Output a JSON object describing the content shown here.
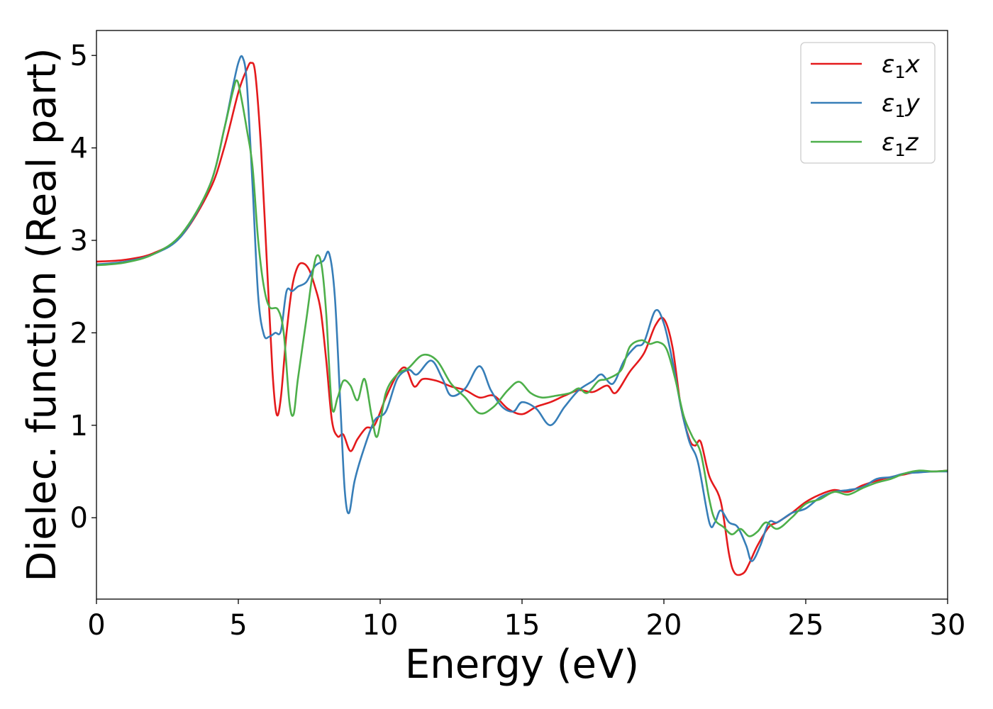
{
  "chart_data": {
    "type": "line",
    "xlabel": "Energy (eV)",
    "ylabel": "Dielec. function (Real part)",
    "xlim": [
      0,
      30
    ],
    "ylim": [
      -0.88,
      5.27
    ],
    "xticks": [
      0,
      5,
      10,
      15,
      20,
      25,
      30
    ],
    "yticks": [
      0,
      1,
      2,
      3,
      4,
      5
    ],
    "grid": false,
    "legend_position": "top-right",
    "series": [
      {
        "name": "ε1x",
        "symbol": "ε",
        "subscript": "1",
        "suffix": "x",
        "color": "#e41a1c",
        "points": [
          [
            0,
            2.77
          ],
          [
            1,
            2.79
          ],
          [
            2,
            2.86
          ],
          [
            3,
            3.05
          ],
          [
            4,
            3.55
          ],
          [
            4.5,
            4.0
          ],
          [
            5,
            4.6
          ],
          [
            5.3,
            4.85
          ],
          [
            5.45,
            4.92
          ],
          [
            5.6,
            4.8
          ],
          [
            5.8,
            4.0
          ],
          [
            6.0,
            2.8
          ],
          [
            6.2,
            1.6
          ],
          [
            6.35,
            1.12
          ],
          [
            6.5,
            1.3
          ],
          [
            6.7,
            2.0
          ],
          [
            6.9,
            2.5
          ],
          [
            7.1,
            2.72
          ],
          [
            7.3,
            2.75
          ],
          [
            7.5,
            2.68
          ],
          [
            7.7,
            2.5
          ],
          [
            7.9,
            2.25
          ],
          [
            8.1,
            1.7
          ],
          [
            8.3,
            1.05
          ],
          [
            8.5,
            0.88
          ],
          [
            8.7,
            0.9
          ],
          [
            8.95,
            0.72
          ],
          [
            9.2,
            0.85
          ],
          [
            9.5,
            0.97
          ],
          [
            9.8,
            1.0
          ],
          [
            10.2,
            1.3
          ],
          [
            10.6,
            1.55
          ],
          [
            10.9,
            1.62
          ],
          [
            11.2,
            1.42
          ],
          [
            11.5,
            1.5
          ],
          [
            12,
            1.48
          ],
          [
            12.5,
            1.42
          ],
          [
            13,
            1.38
          ],
          [
            13.5,
            1.3
          ],
          [
            14,
            1.32
          ],
          [
            14.5,
            1.18
          ],
          [
            15,
            1.12
          ],
          [
            15.5,
            1.2
          ],
          [
            16,
            1.25
          ],
          [
            16.5,
            1.32
          ],
          [
            17,
            1.38
          ],
          [
            17.5,
            1.36
          ],
          [
            18,
            1.43
          ],
          [
            18.3,
            1.35
          ],
          [
            18.8,
            1.58
          ],
          [
            19.3,
            1.78
          ],
          [
            19.7,
            2.08
          ],
          [
            20,
            2.15
          ],
          [
            20.3,
            1.85
          ],
          [
            20.6,
            1.2
          ],
          [
            20.9,
            0.85
          ],
          [
            21.1,
            0.78
          ],
          [
            21.3,
            0.82
          ],
          [
            21.6,
            0.45
          ],
          [
            22,
            0.18
          ],
          [
            22.3,
            -0.4
          ],
          [
            22.5,
            -0.6
          ],
          [
            22.8,
            -0.6
          ],
          [
            23.0,
            -0.5
          ],
          [
            23.3,
            -0.3
          ],
          [
            23.7,
            -0.1
          ],
          [
            24,
            -0.05
          ],
          [
            24.5,
            0.05
          ],
          [
            25,
            0.17
          ],
          [
            25.5,
            0.25
          ],
          [
            26,
            0.3
          ],
          [
            26.5,
            0.28
          ],
          [
            27,
            0.35
          ],
          [
            27.5,
            0.4
          ],
          [
            28,
            0.44
          ],
          [
            28.5,
            0.47
          ],
          [
            29,
            0.5
          ],
          [
            29.5,
            0.5
          ],
          [
            30,
            0.51
          ]
        ]
      },
      {
        "name": "ε1y",
        "symbol": "ε",
        "subscript": "1",
        "suffix": "y",
        "color": "#377eb8",
        "points": [
          [
            0,
            2.74
          ],
          [
            1,
            2.77
          ],
          [
            2,
            2.85
          ],
          [
            3,
            3.05
          ],
          [
            4,
            3.6
          ],
          [
            4.5,
            4.2
          ],
          [
            4.8,
            4.65
          ],
          [
            5.0,
            4.92
          ],
          [
            5.15,
            4.98
          ],
          [
            5.3,
            4.7
          ],
          [
            5.5,
            3.6
          ],
          [
            5.7,
            2.4
          ],
          [
            5.9,
            1.98
          ],
          [
            6.1,
            1.96
          ],
          [
            6.3,
            2.0
          ],
          [
            6.5,
            2.02
          ],
          [
            6.7,
            2.45
          ],
          [
            6.9,
            2.45
          ],
          [
            7.1,
            2.5
          ],
          [
            7.4,
            2.55
          ],
          [
            7.7,
            2.72
          ],
          [
            8.0,
            2.78
          ],
          [
            8.2,
            2.86
          ],
          [
            8.4,
            2.4
          ],
          [
            8.6,
            1.2
          ],
          [
            8.75,
            0.3
          ],
          [
            8.9,
            0.05
          ],
          [
            9.1,
            0.4
          ],
          [
            9.4,
            0.72
          ],
          [
            9.8,
            1.05
          ],
          [
            10.2,
            1.15
          ],
          [
            10.6,
            1.5
          ],
          [
            11.0,
            1.6
          ],
          [
            11.3,
            1.55
          ],
          [
            11.8,
            1.7
          ],
          [
            12.2,
            1.5
          ],
          [
            12.5,
            1.32
          ],
          [
            13.0,
            1.4
          ],
          [
            13.5,
            1.64
          ],
          [
            13.9,
            1.38
          ],
          [
            14.3,
            1.2
          ],
          [
            14.7,
            1.15
          ],
          [
            15.0,
            1.25
          ],
          [
            15.5,
            1.18
          ],
          [
            16.0,
            1.0
          ],
          [
            16.5,
            1.2
          ],
          [
            17.0,
            1.38
          ],
          [
            17.5,
            1.48
          ],
          [
            17.8,
            1.55
          ],
          [
            18.2,
            1.45
          ],
          [
            18.6,
            1.7
          ],
          [
            19.0,
            1.85
          ],
          [
            19.3,
            1.9
          ],
          [
            19.7,
            2.24
          ],
          [
            20.0,
            2.1
          ],
          [
            20.3,
            1.7
          ],
          [
            20.6,
            1.2
          ],
          [
            20.9,
            0.82
          ],
          [
            21.2,
            0.6
          ],
          [
            21.6,
            -0.05
          ],
          [
            21.8,
            -0.05
          ],
          [
            22.0,
            0.08
          ],
          [
            22.3,
            -0.05
          ],
          [
            22.6,
            -0.1
          ],
          [
            22.9,
            -0.3
          ],
          [
            23.1,
            -0.47
          ],
          [
            23.4,
            -0.3
          ],
          [
            23.7,
            -0.05
          ],
          [
            24,
            -0.05
          ],
          [
            24.5,
            0.05
          ],
          [
            25,
            0.1
          ],
          [
            25.5,
            0.22
          ],
          [
            26,
            0.28
          ],
          [
            26.5,
            0.3
          ],
          [
            27,
            0.33
          ],
          [
            27.5,
            0.42
          ],
          [
            28,
            0.44
          ],
          [
            28.5,
            0.48
          ],
          [
            29,
            0.49
          ],
          [
            29.5,
            0.5
          ],
          [
            30,
            0.5
          ]
        ]
      },
      {
        "name": "ε1z",
        "symbol": "ε",
        "subscript": "1",
        "suffix": "z",
        "color": "#4daf4a",
        "points": [
          [
            0,
            2.73
          ],
          [
            1,
            2.76
          ],
          [
            2,
            2.85
          ],
          [
            3,
            3.07
          ],
          [
            4,
            3.6
          ],
          [
            4.5,
            4.2
          ],
          [
            4.8,
            4.6
          ],
          [
            4.95,
            4.73
          ],
          [
            5.1,
            4.55
          ],
          [
            5.3,
            4.2
          ],
          [
            5.5,
            3.8
          ],
          [
            5.7,
            3.0
          ],
          [
            5.9,
            2.5
          ],
          [
            6.1,
            2.28
          ],
          [
            6.4,
            2.25
          ],
          [
            6.6,
            2.0
          ],
          [
            6.8,
            1.25
          ],
          [
            6.95,
            1.12
          ],
          [
            7.1,
            1.5
          ],
          [
            7.4,
            2.15
          ],
          [
            7.65,
            2.7
          ],
          [
            7.8,
            2.84
          ],
          [
            7.95,
            2.7
          ],
          [
            8.1,
            2.2
          ],
          [
            8.3,
            1.2
          ],
          [
            8.5,
            1.3
          ],
          [
            8.7,
            1.48
          ],
          [
            8.95,
            1.43
          ],
          [
            9.2,
            1.27
          ],
          [
            9.45,
            1.5
          ],
          [
            9.7,
            1.1
          ],
          [
            9.9,
            0.88
          ],
          [
            10.2,
            1.35
          ],
          [
            10.6,
            1.55
          ],
          [
            11.0,
            1.62
          ],
          [
            11.5,
            1.76
          ],
          [
            12.0,
            1.7
          ],
          [
            12.5,
            1.45
          ],
          [
            13.0,
            1.3
          ],
          [
            13.5,
            1.13
          ],
          [
            14.0,
            1.2
          ],
          [
            14.5,
            1.38
          ],
          [
            14.9,
            1.47
          ],
          [
            15.3,
            1.35
          ],
          [
            15.7,
            1.3
          ],
          [
            16.2,
            1.32
          ],
          [
            16.7,
            1.35
          ],
          [
            17.0,
            1.4
          ],
          [
            17.3,
            1.35
          ],
          [
            17.7,
            1.48
          ],
          [
            18.0,
            1.5
          ],
          [
            18.5,
            1.6
          ],
          [
            18.8,
            1.85
          ],
          [
            19.2,
            1.92
          ],
          [
            19.5,
            1.88
          ],
          [
            19.8,
            1.9
          ],
          [
            20.1,
            1.82
          ],
          [
            20.4,
            1.5
          ],
          [
            20.7,
            1.1
          ],
          [
            21.0,
            0.88
          ],
          [
            21.3,
            0.7
          ],
          [
            21.6,
            0.2
          ],
          [
            21.8,
            -0.02
          ],
          [
            22.1,
            -0.1
          ],
          [
            22.4,
            -0.18
          ],
          [
            22.7,
            -0.12
          ],
          [
            23.0,
            -0.2
          ],
          [
            23.3,
            -0.15
          ],
          [
            23.6,
            -0.05
          ],
          [
            24.0,
            -0.12
          ],
          [
            24.5,
            0.0
          ],
          [
            25.0,
            0.15
          ],
          [
            25.5,
            0.2
          ],
          [
            26.0,
            0.28
          ],
          [
            26.5,
            0.25
          ],
          [
            27.0,
            0.32
          ],
          [
            27.5,
            0.38
          ],
          [
            28.0,
            0.42
          ],
          [
            28.5,
            0.48
          ],
          [
            29.0,
            0.51
          ],
          [
            29.5,
            0.5
          ],
          [
            30,
            0.51
          ]
        ]
      }
    ]
  }
}
